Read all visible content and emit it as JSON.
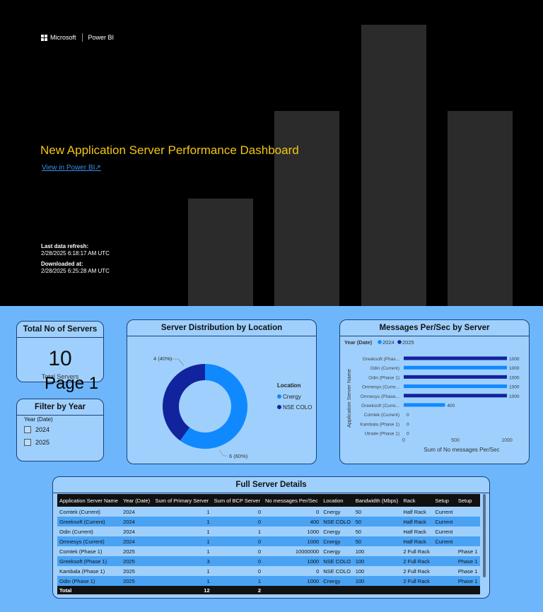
{
  "cover": {
    "brand_ms": "Microsoft",
    "brand_pbi": "Power BI",
    "title": "New Application Server Performance Dashboard",
    "view_link": "View in Power BI",
    "refresh_label": "Last data refresh:",
    "refresh_value": "2/28/2025 6:18:17 AM UTC",
    "download_label": "Downloaded at:",
    "download_value": "2/28/2025 6:25:28 AM UTC"
  },
  "colors": {
    "cover_bg": "#000000",
    "title_yellow": "#f2c811",
    "report_bg": "#6db6fb",
    "card_bg": "#9fd0fd",
    "cnergy": "#1089ff",
    "nse_colo": "#12239e"
  },
  "report": {
    "page_label": "Page 1",
    "kpi": {
      "title": "Total No of Servers",
      "value": "10",
      "label": "Total Servers"
    },
    "filter": {
      "title": "Filter by Year",
      "field": "Year (Date)",
      "options": [
        "2024",
        "2025"
      ]
    },
    "donut": {
      "title": "Server Distribution by Location",
      "legend_title": "Location",
      "legend": [
        "Cnergy",
        "NSE COLO"
      ],
      "label_nse": "4 (40%)",
      "label_cnergy": "6 (60%)"
    },
    "bars": {
      "title": "Messages Per/Sec by Server",
      "legend_title": "Year (Date)",
      "legend": [
        "2024",
        "2025"
      ],
      "ylabel": "Application Server Name",
      "xlabel": "Sum of No messages Per/Sec",
      "xticks": [
        "0",
        "500",
        "1000"
      ]
    },
    "table": {
      "title": "Full Server Details",
      "headers": [
        "Application Server Name",
        "Year (Date)",
        "Sum of Primary Server",
        "Sum of BCP Server",
        "No messages Per/Sec",
        "Location",
        "Bandwidth (Mbps)",
        "Rack",
        "Setup",
        "Setup"
      ],
      "rows": [
        [
          "Comtek (Current)",
          "2024",
          "1",
          "0",
          "0",
          "Cnergy",
          "50",
          "Half Rack",
          "Current",
          ""
        ],
        [
          "Greeksoft (Current)",
          "2024",
          "1",
          "0",
          "400",
          "NSE COLO",
          "50",
          "Half Rack",
          "Current",
          ""
        ],
        [
          "Odin (Current)",
          "2024",
          "1",
          "1",
          "1000",
          "Cnergy",
          "50",
          "Half Rack",
          "Current",
          ""
        ],
        [
          "Omnesys (Current)",
          "2024",
          "1",
          "0",
          "1000",
          "Cnergy",
          "50",
          "Half Rack",
          "Current",
          ""
        ],
        [
          "Comtek (Phase 1)",
          "2025",
          "1",
          "0",
          "10000000",
          "Cnergy",
          "100",
          "2 Full Rack",
          "",
          "Phase 1"
        ],
        [
          "Greeksoft (Phase 1)",
          "2025",
          "3",
          "0",
          "1000",
          "NSE COLO",
          "100",
          "2 Full Rack",
          "",
          "Phase 1"
        ],
        [
          "Kambala (Phase 1)",
          "2025",
          "1",
          "0",
          "0",
          "NSE COLO",
          "100",
          "2 Full Rack",
          "",
          "Phase 1"
        ],
        [
          "Odin (Phase 1)",
          "2025",
          "1",
          "1",
          "1000",
          "Cnergy",
          "100",
          "2 Full Rack",
          "",
          "Phase 1"
        ]
      ],
      "total": [
        "Total",
        "",
        "12",
        "2",
        "",
        "",
        "",
        "",
        "",
        ""
      ]
    }
  },
  "chart_data": [
    {
      "type": "pie",
      "title": "Server Distribution by Location",
      "legend_title": "Location",
      "categories": [
        "Cnergy",
        "NSE COLO"
      ],
      "values": [
        6,
        4
      ],
      "data_labels": [
        "6 (60%)",
        "4 (40%)"
      ],
      "hole": true,
      "legend": "right"
    },
    {
      "type": "bar",
      "orientation": "horizontal",
      "title": "Messages Per/Sec by Server",
      "xlabel": "Sum of No messages Per/Sec",
      "ylabel": "Application Server Name",
      "legend_title": "Year (Date)",
      "legend": "top-left",
      "xlim": [
        0,
        1000
      ],
      "xticks": [
        0,
        500,
        1000
      ],
      "categories": [
        "Greeksoft (Phas...",
        "Odin (Current)",
        "Odin (Phase 1)",
        "Omnesys (Curre...",
        "Omnesys (Phase...",
        "Greeksoft (Curre...",
        "Comtek (Current)",
        "Kambala (Phase 1)",
        "Utrade (Phase 1)"
      ],
      "series": [
        {
          "name": "2024",
          "values": [
            null,
            1000,
            null,
            1000,
            null,
            400,
            0,
            null,
            null
          ]
        },
        {
          "name": "2025",
          "values": [
            1000,
            null,
            1000,
            null,
            1000,
            null,
            null,
            0,
            0
          ]
        }
      ],
      "data_labels": [
        "1000",
        "1000",
        "1000",
        "1000",
        "1000",
        "400",
        "0",
        "0",
        "0"
      ]
    }
  ]
}
